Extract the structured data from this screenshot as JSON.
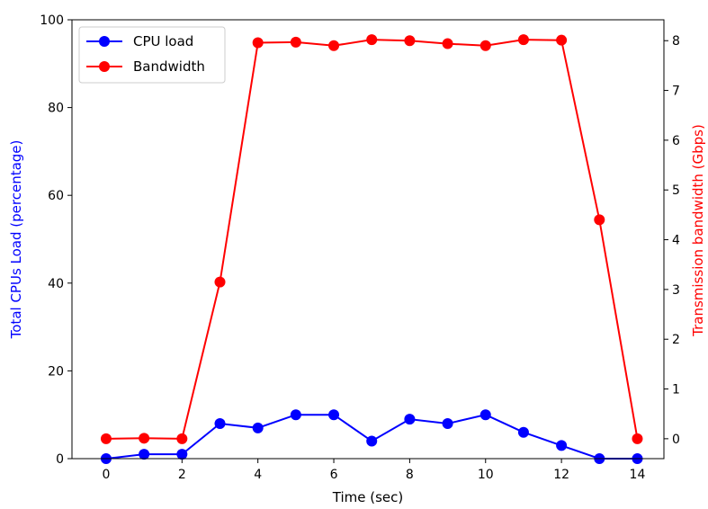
{
  "chart_data": {
    "type": "line",
    "x": [
      0,
      1,
      2,
      3,
      4,
      5,
      6,
      7,
      8,
      9,
      10,
      11,
      12,
      13,
      14
    ],
    "xlabel": "Time (sec)",
    "xlim": [
      -0.9,
      14.7
    ],
    "xticks": [
      0,
      2,
      4,
      6,
      8,
      10,
      12,
      14
    ],
    "grid": false,
    "legend_position": "top-left",
    "series": [
      {
        "name": "CPU load",
        "axis": "left",
        "color": "#0000ff",
        "values": [
          0,
          1,
          1,
          8,
          7,
          10,
          10,
          4,
          9,
          8,
          10,
          6,
          3,
          0,
          0
        ]
      },
      {
        "name": "Bandwidth",
        "axis": "right",
        "color": "#ff0000",
        "values": [
          0.0,
          0.01,
          0.0,
          3.15,
          7.96,
          7.97,
          7.9,
          8.02,
          8.0,
          7.94,
          7.9,
          8.02,
          8.01,
          4.4,
          0.0
        ]
      }
    ],
    "y_left": {
      "label": "Total CPUs Load (percentage)",
      "color": "#0000ff",
      "ylim": [
        0,
        100
      ],
      "ticks": [
        0,
        20,
        40,
        60,
        80,
        100
      ]
    },
    "y_right": {
      "label": "Transmission bandwidth (Gbps)",
      "color": "#ff0000",
      "ylim": [
        -0.4,
        8.42
      ],
      "ticks": [
        0,
        1,
        2,
        3,
        4,
        5,
        6,
        7,
        8
      ]
    }
  }
}
